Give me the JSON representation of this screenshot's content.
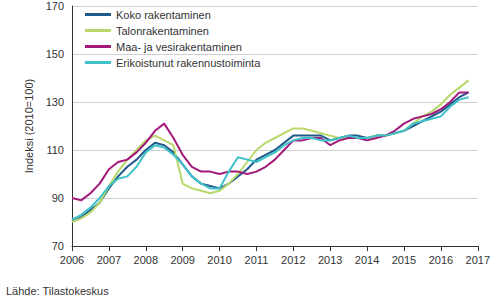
{
  "chart_data": {
    "type": "line",
    "y_label": "Indeksi (2010=100)",
    "source": "Lähde: Tilastokeskus",
    "x": [
      2006.0,
      2006.25,
      2006.5,
      2006.75,
      2007.0,
      2007.25,
      2007.5,
      2007.75,
      2008.0,
      2008.25,
      2008.5,
      2008.75,
      2009.0,
      2009.25,
      2009.5,
      2009.75,
      2010.0,
      2010.25,
      2010.5,
      2010.75,
      2011.0,
      2011.25,
      2011.5,
      2011.75,
      2012.0,
      2012.25,
      2012.5,
      2012.75,
      2013.0,
      2013.25,
      2013.5,
      2013.75,
      2014.0,
      2014.25,
      2014.5,
      2014.75,
      2015.0,
      2015.25,
      2015.5,
      2015.75,
      2016.0,
      2016.25,
      2016.5,
      2016.75
    ],
    "series": [
      {
        "name": "Koko rakentaminen",
        "color": "#1f5a8a",
        "values": [
          80,
          82,
          85,
          88,
          94,
          99,
          103,
          106,
          110,
          113,
          112,
          109,
          104,
          99,
          96,
          95,
          94,
          96,
          99,
          102,
          106,
          108,
          110,
          113,
          116,
          116,
          116,
          116,
          114,
          115,
          116,
          116,
          115,
          116,
          116,
          117,
          118,
          120,
          122,
          124,
          126,
          129,
          132,
          134
        ]
      },
      {
        "name": "Talonrakentaminen",
        "color": "#b8d86b",
        "values": [
          80,
          81.5,
          84,
          88,
          95,
          101,
          106,
          110,
          114,
          116,
          114,
          112,
          96,
          94,
          93,
          92,
          93,
          96,
          100,
          105,
          110,
          113,
          115,
          117,
          119,
          119,
          118,
          117,
          116,
          115,
          115,
          115,
          115,
          116,
          116,
          117,
          118,
          121,
          124,
          126,
          129,
          133,
          136,
          139
        ]
      },
      {
        "name": "Maa- ja vesirakentaminen",
        "color": "#a3197a",
        "values": [
          90,
          89,
          92,
          96,
          102,
          105,
          106,
          109,
          113,
          118,
          121,
          115,
          108,
          103,
          101,
          101,
          100,
          101,
          101,
          100,
          101,
          103,
          106,
          110,
          114,
          114,
          115,
          115,
          112,
          114,
          115,
          115,
          114,
          115,
          116,
          118,
          121,
          123,
          124,
          125,
          127,
          130,
          134,
          134
        ]
      },
      {
        "name": "Erikoistunut rakennustoiminta",
        "color": "#3fc1c9",
        "values": [
          81,
          83,
          86,
          90,
          95,
          98,
          99,
          103,
          109,
          112,
          111,
          108,
          104,
          99,
          96,
          94,
          94,
          101,
          107,
          106,
          105,
          107,
          109,
          112,
          114,
          115,
          115,
          114,
          114,
          115,
          116,
          115,
          115,
          116,
          116,
          117,
          118,
          121,
          122,
          123,
          124,
          128,
          131,
          132
        ]
      }
    ],
    "xlim": [
      2006,
      2017
    ],
    "xticks": [
      2006,
      2007,
      2008,
      2009,
      2010,
      2011,
      2012,
      2013,
      2014,
      2015,
      2016,
      2017
    ],
    "ylim": [
      70,
      170
    ],
    "yticks": [
      70,
      90,
      110,
      130,
      150,
      170
    ],
    "grid": true,
    "legend": "upper left"
  }
}
